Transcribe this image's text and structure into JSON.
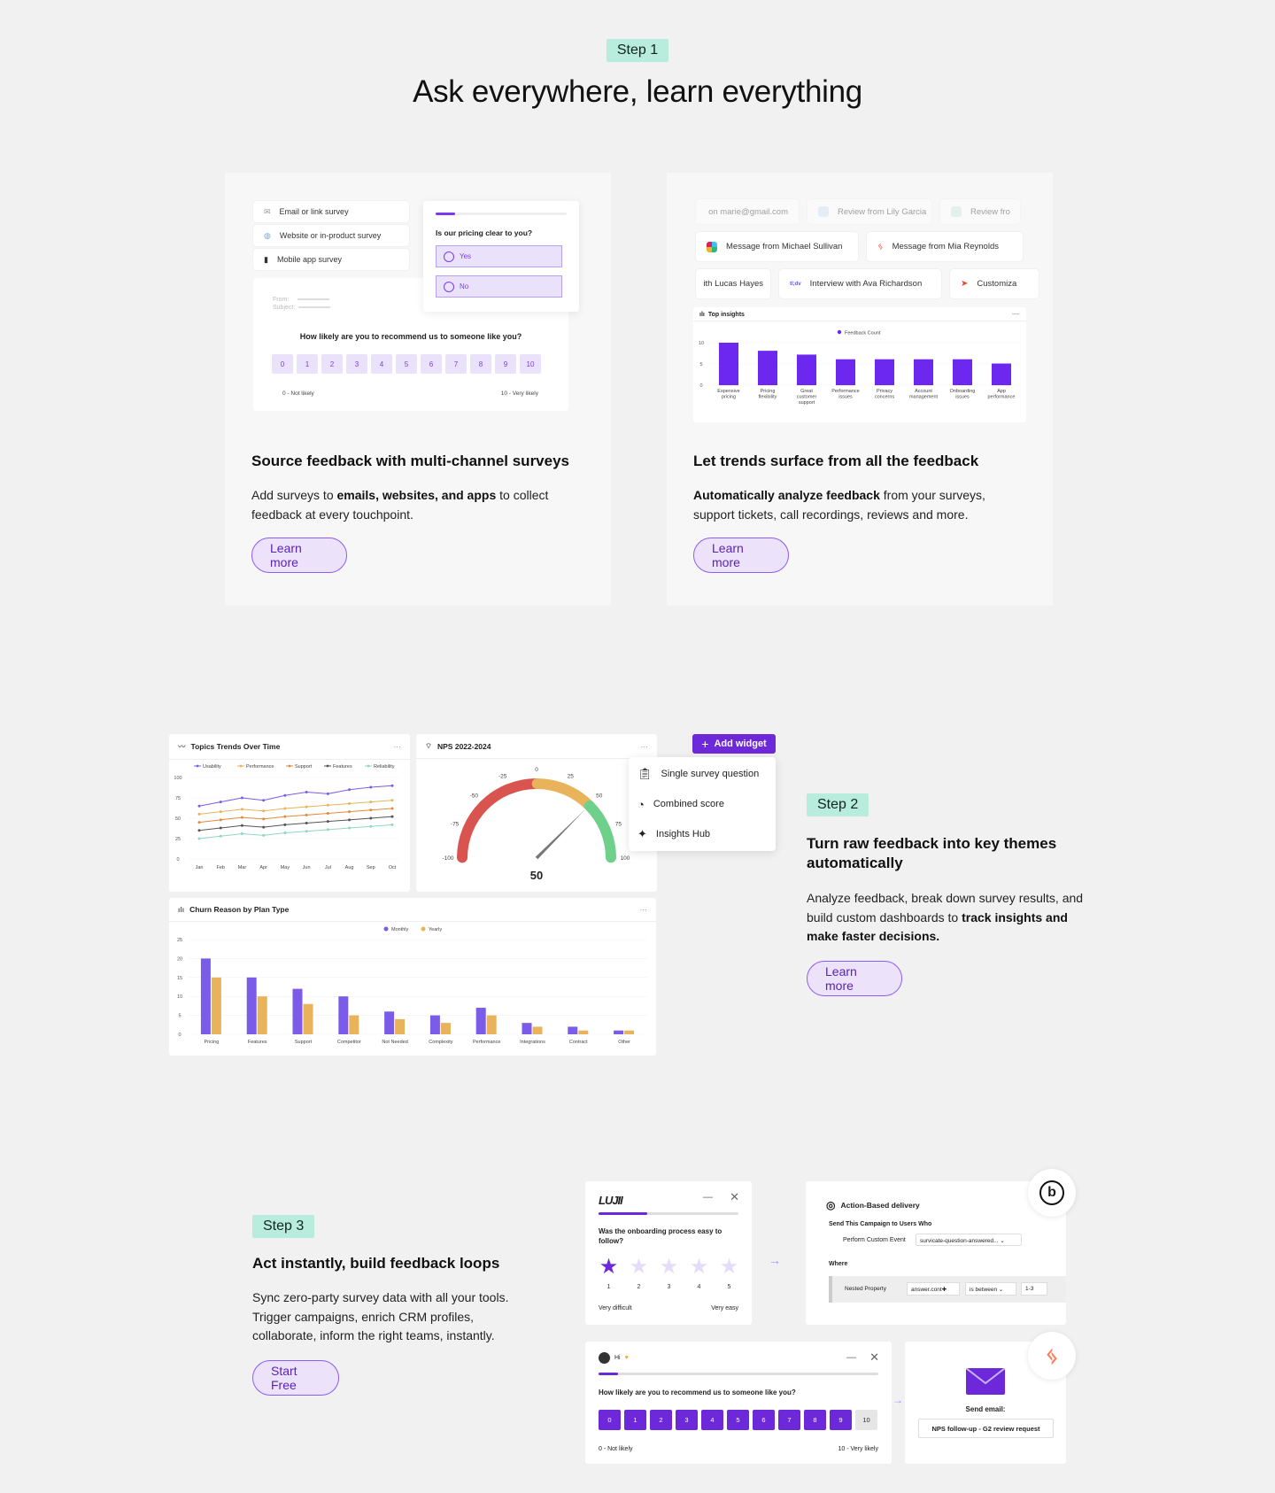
{
  "step1": {
    "tag": "Step 1",
    "title": "Ask everywhere, learn everything",
    "card_left": {
      "channels": [
        "Email or link survey",
        "Website or in-product survey",
        "Mobile app survey"
      ],
      "popup": {
        "question": "Is our pricing clear to you?",
        "options": [
          "Yes",
          "No"
        ],
        "progress": 0.15
      },
      "email": {
        "from_label": "From:",
        "subject_label": "Subject:",
        "question": "How likely are you to recommend us to someone like you?",
        "scale": [
          "0",
          "1",
          "2",
          "3",
          "4",
          "5",
          "6",
          "7",
          "8",
          "9",
          "10"
        ],
        "low": "0 - Not likely",
        "high": "10 - Very likely"
      },
      "title": "Source feedback with multi-channel surveys",
      "desc_pre": "Add surveys to ",
      "desc_bold": "emails, websites, and apps",
      "desc_post": " to collect feedback at every touchpoint.",
      "button": "Learn more"
    },
    "card_right": {
      "sources_row1": [
        "on marie@gmail.com",
        "Review from Lily Garcia",
        "Review fro"
      ],
      "sources_row2": [
        "Message from Michael Sullivan",
        "Message from Mia Reynolds"
      ],
      "sources_row3": [
        "ith Lucas Hayes",
        "Interview with Ava Richardson",
        "Customiza"
      ],
      "widget_title": "Top insights",
      "widget_menu": "—",
      "title": "Let trends surface from all the feedback",
      "desc_bold": "Automatically analyze feedback",
      "desc_post": " from your surveys, support tickets, call recordings, reviews and more.",
      "button": "Learn more"
    }
  },
  "step2": {
    "tag": "Step 2",
    "title": "Turn raw feedback into key themes automatically",
    "desc_pre": "Analyze feedback, break down survey results, and build custom dashboards to ",
    "desc_bold": "track insights and make faster decisions.",
    "button": "Learn more",
    "add_widget": "Add widget",
    "menu": [
      "Single survey question",
      "Combined score",
      "Insights Hub"
    ],
    "trend_widget": "Topics Trends Over Time",
    "nps_widget": "NPS 2022-2024",
    "nps_value": "50",
    "churn_widget": "Churn Reason by Plan Type",
    "more": "···"
  },
  "step3": {
    "tag": "Step 3",
    "title": "Act instantly, build feedback loops",
    "desc": "Sync zero-party survey data with all your tools. Trigger campaigns, enrich CRM profiles, collaborate, inform the right teams, instantly.",
    "button": "Start Free",
    "star_survey": {
      "logo": "LUJII",
      "question": "Was the onboarding process easy to follow?",
      "labels": [
        "1",
        "2",
        "3",
        "4",
        "5"
      ],
      "low": "Very difficult",
      "high": "Very easy",
      "progress": 0.35
    },
    "braze": {
      "title": "Action-Based delivery",
      "subtitle": "Send This Campaign to Users Who",
      "event_label": "Perform Custom Event",
      "event_value": "survicate-question-answered...",
      "where": "Where",
      "prop": "Nested Property",
      "prop_val": "answer.cont",
      "cond": "is between",
      "range": "1-3"
    },
    "nps_survey": {
      "greeting": "Hi",
      "question": "How likely are you to recommend us to someone like you?",
      "scale": [
        "0",
        "1",
        "2",
        "3",
        "4",
        "5",
        "6",
        "7",
        "8",
        "9",
        "10"
      ],
      "low": "0 - Not likely",
      "high": "10 - Very likely",
      "progress": 0.07
    },
    "email": {
      "label": "Send email:",
      "value": "NPS follow-up - G2 review request"
    }
  },
  "chart_data": [
    {
      "type": "bar",
      "title": "Top insights",
      "legend": "Feedback Count",
      "categories": [
        "Expensive pricing",
        "Pricing flexibility",
        "Great customer support",
        "Performance issues",
        "Privacy concerns",
        "Account management",
        "Onboarding issues",
        "App performance"
      ],
      "values": [
        10,
        8.1,
        7.2,
        6.1,
        6.1,
        6.1,
        6.1,
        5.1
      ],
      "ylim": [
        0,
        10
      ],
      "yticks": [
        0,
        5,
        10
      ],
      "colors": {
        "bar": "#6d28f0"
      }
    },
    {
      "type": "line",
      "title": "Topics Trends Over Time",
      "categories": [
        "Jan",
        "Feb",
        "Mar",
        "Apr",
        "May",
        "Jun",
        "Jul",
        "Aug",
        "Sep",
        "Oct"
      ],
      "series": [
        {
          "name": "Usability",
          "color": "#7c5ce6",
          "values": [
            65,
            70,
            75,
            72,
            78,
            82,
            80,
            85,
            88,
            90
          ]
        },
        {
          "name": "Performance",
          "color": "#e8b35a",
          "values": [
            55,
            58,
            61,
            59,
            62,
            64,
            66,
            68,
            70,
            72
          ]
        },
        {
          "name": "Support",
          "color": "#e08a3c",
          "values": [
            45,
            48,
            51,
            49,
            52,
            54,
            56,
            58,
            60,
            62
          ]
        },
        {
          "name": "Features",
          "color": "#555555",
          "values": [
            35,
            38,
            41,
            39,
            42,
            44,
            46,
            48,
            50,
            52
          ]
        },
        {
          "name": "Reliability",
          "color": "#8fd6c4",
          "values": [
            25,
            28,
            31,
            29,
            32,
            34,
            36,
            38,
            40,
            42
          ]
        }
      ],
      "ylim": [
        0,
        100
      ],
      "yticks": [
        0,
        25,
        50,
        75,
        100
      ]
    },
    {
      "type": "gauge",
      "title": "NPS 2022-2024",
      "value": 50,
      "range": [
        -100,
        100
      ],
      "ticks": [
        -100,
        -75,
        -50,
        -25,
        0,
        25,
        50,
        75,
        100
      ]
    },
    {
      "type": "bar",
      "title": "Churn Reason by Plan Type",
      "categories": [
        "Pricing",
        "Features",
        "Support",
        "Competitor",
        "Not Needed",
        "Complexity",
        "Performance",
        "Integrations",
        "Contract",
        "Other"
      ],
      "series": [
        {
          "name": "Monthly",
          "color": "#7b5ce8",
          "values": [
            20,
            15,
            12,
            10,
            6,
            5,
            7,
            3,
            2,
            1
          ]
        },
        {
          "name": "Yearly",
          "color": "#e8b35a",
          "values": [
            15,
            10,
            8,
            5,
            4,
            3,
            5,
            2,
            1,
            1
          ]
        }
      ],
      "ylim": [
        0,
        25
      ],
      "yticks": [
        0,
        5,
        10,
        15,
        20,
        25
      ]
    }
  ]
}
